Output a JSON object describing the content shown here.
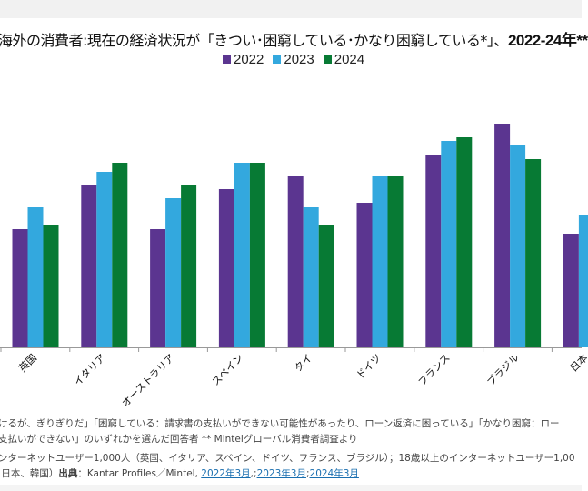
{
  "chart_data": {
    "type": "bar",
    "title_main": "海外の消費者:現在の経済状況が「きつい･困窮している･かなり困窮している*」、",
    "title_bold": "2022-24年**",
    "categories": [
      "英国",
      "イタリア",
      "オーストラリア",
      "スペイン",
      "タイ",
      "ドイツ",
      "フランス",
      "ブラジル",
      "日本"
    ],
    "series": [
      {
        "name": "2022",
        "color": "#5b3590",
        "values": [
          13.0,
          17.8,
          13.0,
          17.4,
          18.8,
          15.9,
          21.2,
          24.6,
          12.5
        ]
      },
      {
        "name": "2023",
        "color": "#33a8de",
        "values": [
          15.4,
          19.3,
          16.4,
          20.3,
          15.4,
          18.8,
          22.7,
          22.3,
          14.5
        ]
      },
      {
        "name": "2024",
        "color": "#077a34",
        "values": [
          13.5,
          20.3,
          17.8,
          20.3,
          13.5,
          18.8,
          23.1,
          20.7,
          null
        ]
      }
    ],
    "y_axis_labels_shown": false,
    "grid": false,
    "legend_position": "top"
  },
  "footnotes": {
    "line1": "けるが、ぎりぎりだ」「困窮している：請求書の支払いができない可能性があったり、ローン返済に困っている」「かなり困窮：ロー",
    "line2": "支払いができない」のいずれかを選んだ回答者 ** Mintelグローバル消費者調査より",
    "line3": "ンターネットユーザー1,000人（英国、イタリア、スペイン、ドイツ、フランス、ブラジル）；18歳以上のインターネットユーザー1,00",
    "line4_prefix": "日本、韓国）",
    "source_label": "出典",
    "source_text": "：Kantar Profiles／Mintel, ",
    "link1": "2022年3月",
    "sep1": ",;",
    "link2": "2023年3月",
    "sep2": ";",
    "link3": "2024年3月"
  }
}
